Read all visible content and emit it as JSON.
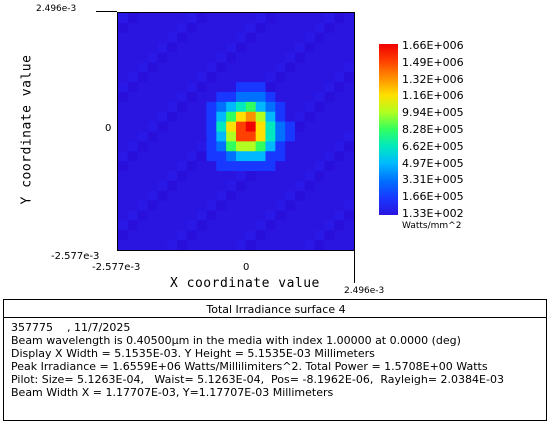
{
  "plot": {
    "title": "Total Irradiance surface 4",
    "y_axis_title": "Y coordinate value",
    "x_axis_title": "X coordinate value",
    "y_top_tick": "2.496e-3",
    "y_mid_tick": "0",
    "y_bottom_tick": "-2.577e-3",
    "x_left_tick": "-2.577e-3",
    "x_mid_tick": "0",
    "x_right_tick": "2.496e-3",
    "units": "Watts/mm^2"
  },
  "colorbar": {
    "labels": [
      "1.66E+006",
      "1.49E+006",
      "1.32E+006",
      "1.16E+006",
      "9.94E+005",
      "8.28E+005",
      "6.62E+005",
      "4.97E+005",
      "3.31E+005",
      "1.66E+005",
      "1.33E+002"
    ],
    "colors": [
      "#f00000",
      "#ff4000",
      "#ff9000",
      "#ffe000",
      "#b0ff20",
      "#30ff60",
      "#00e8c0",
      "#00b8ff",
      "#0070ff",
      "#1838ff",
      "#2a14e0"
    ]
  },
  "heatmap": {
    "grid_size": 24,
    "peak_irradiance": 1655900.0,
    "min_irradiance": 133,
    "background": "#2a14e0"
  },
  "info": {
    "lines": [
      "357775    , 11/7/2025",
      "Beam wavelength is 0.40500µm in the media with index 1.00000 at 0.0000 (deg)",
      "Display X Width = 5.1535E-03. Y Height = 5.1535E-03 Millimeters",
      "Peak Irradiance = 1.6559E+06 Watts/Millilimiters^2. Total Power = 1.5708E+00 Watts",
      "Pilot: Size= 5.1263E-04,   Waist= 5.1263E-04,  Pos= -8.1962E-06,  Rayleigh= 2.0384E-03",
      "Beam Width X = 1.17707E-03, Y=1.17707E-03 Millimeters"
    ]
  }
}
